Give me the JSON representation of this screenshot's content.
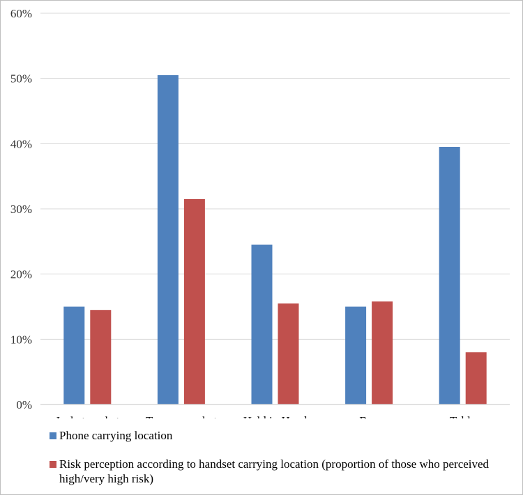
{
  "chart_data": {
    "type": "bar",
    "title": "",
    "xlabel": "",
    "ylabel": "",
    "categories": [
      "Jacket pocket",
      "Trouser pocket",
      "Held in Hand",
      "Bag",
      "Table"
    ],
    "series": [
      {
        "name": "Phone carrying location",
        "color": "#4f81bd",
        "values": [
          15.0,
          50.5,
          24.5,
          15.0,
          39.5
        ]
      },
      {
        "name": "Risk perception according to handset carrying location (proportion of those who perceived high/very high risk)",
        "color": "#c0504d",
        "values": [
          14.5,
          31.5,
          15.5,
          15.8,
          8.0
        ]
      }
    ],
    "ylim": [
      0,
      60
    ],
    "yticks": [
      "0%",
      "10%",
      "20%",
      "30%",
      "40%",
      "50%",
      "60%"
    ],
    "ytick_values": [
      0,
      10,
      20,
      30,
      40,
      50,
      60
    ],
    "grid": true,
    "legend_position": "bottom"
  }
}
